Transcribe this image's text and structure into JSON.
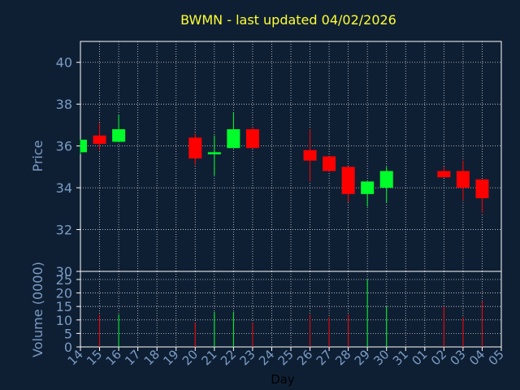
{
  "chart_data": {
    "type": "candlestick",
    "title": "BWMN - last updated 04/02/2026",
    "xlabel": "Day",
    "price_panel": {
      "ylabel": "Price",
      "ylim": [
        30,
        41
      ],
      "yticks": [
        30,
        32,
        34,
        36,
        38,
        40
      ]
    },
    "volume_panel": {
      "ylabel": "Volume (0000)",
      "ylim": [
        0,
        28
      ],
      "yticks": [
        0,
        5,
        10,
        15,
        20,
        25
      ]
    },
    "grid": true,
    "x_tick_labels": [
      "14",
      "15",
      "16",
      "17",
      "18",
      "19",
      "20",
      "21",
      "22",
      "23",
      "24",
      "25",
      "26",
      "27",
      "28",
      "29",
      "30",
      "31",
      "01",
      "02",
      "03",
      "04",
      "05"
    ],
    "candles": [
      {
        "day": "14",
        "open": 35.7,
        "high": 36.3,
        "low": 35.6,
        "close": 36.3,
        "volume": 0
      },
      {
        "day": "15",
        "open": 36.5,
        "high": 37.1,
        "low": 35.8,
        "close": 36.1,
        "volume": 12
      },
      {
        "day": "16",
        "open": 36.2,
        "high": 37.5,
        "low": 36.2,
        "close": 36.8,
        "volume": 12
      },
      {
        "day": "20",
        "open": 36.4,
        "high": 36.6,
        "low": 35.1,
        "close": 35.4,
        "volume": 9
      },
      {
        "day": "21",
        "open": 35.6,
        "high": 36.5,
        "low": 34.6,
        "close": 35.7,
        "volume": 13
      },
      {
        "day": "22",
        "open": 35.9,
        "high": 37.6,
        "low": 35.9,
        "close": 36.8,
        "volume": 13
      },
      {
        "day": "23",
        "open": 36.8,
        "high": 36.9,
        "low": 35.9,
        "close": 35.9,
        "volume": 9
      },
      {
        "day": "26",
        "open": 35.8,
        "high": 36.8,
        "low": 34.3,
        "close": 35.3,
        "volume": 12
      },
      {
        "day": "27",
        "open": 35.5,
        "high": 35.5,
        "low": 34.8,
        "close": 34.8,
        "volume": 11
      },
      {
        "day": "28",
        "open": 35.0,
        "high": 35.0,
        "low": 33.3,
        "close": 33.7,
        "volume": 12
      },
      {
        "day": "29",
        "open": 33.7,
        "high": 34.3,
        "low": 33.1,
        "close": 34.3,
        "volume": 25
      },
      {
        "day": "30",
        "open": 34.0,
        "high": 35.0,
        "low": 33.3,
        "close": 34.8,
        "volume": 15
      },
      {
        "day": "02",
        "open": 34.8,
        "high": 35.0,
        "low": 34.5,
        "close": 34.5,
        "volume": 15
      },
      {
        "day": "03",
        "open": 34.8,
        "high": 35.3,
        "low": 33.4,
        "close": 34.0,
        "volume": 11
      },
      {
        "day": "04",
        "open": 34.4,
        "high": 34.4,
        "low": 32.8,
        "close": 33.5,
        "volume": 17
      }
    ],
    "colors": {
      "background": "#0f1f33",
      "axes_text": "#7a9cc6",
      "title": "#ffff33",
      "up": "#00ff2a",
      "down": "#ff0000",
      "axis_line": "#ffffff"
    }
  }
}
